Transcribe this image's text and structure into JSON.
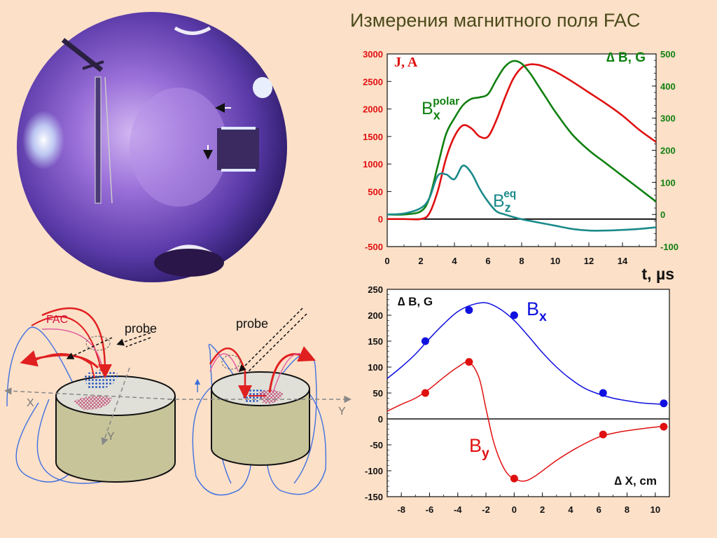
{
  "slide": {
    "title": "Измерения магнитного поля FAC",
    "background": "#fce0c8"
  },
  "diagram": {
    "fac_label": "FAC",
    "probe_label_left": "probe",
    "probe_label_right": "probe",
    "axis_x": "X",
    "axis_y_left": "Y",
    "axis_y_right": "Y"
  },
  "chart_data": [
    {
      "type": "line",
      "x": [
        0,
        1,
        2,
        2.5,
        3,
        3.5,
        4,
        4.5,
        5,
        5.5,
        6,
        6.5,
        7,
        7.5,
        8,
        8.5,
        9,
        9.5,
        10,
        11,
        12,
        13,
        14,
        15,
        16
      ],
      "xlabel": "t, µs",
      "xlim": [
        0,
        16
      ],
      "x_ticks": [
        0,
        2,
        4,
        6,
        8,
        10,
        12,
        14
      ],
      "ylabel_left": "J, A",
      "ylim_left": [
        -500,
        3000
      ],
      "y_ticks_left": [
        -500,
        0,
        500,
        1000,
        1500,
        2000,
        2500,
        3000
      ],
      "ylabel_right": "∆ B, G",
      "ylim_right": [
        -100,
        500
      ],
      "y_ticks_right": [
        -100,
        0,
        100,
        200,
        300,
        400,
        500
      ],
      "colors": {
        "left_axis": "#e01010",
        "right_axis": "#108010",
        "teal": "#1a8a8a"
      },
      "series": [
        {
          "name": "J",
          "axis": "left",
          "color": "#e01010",
          "values": [
            0,
            0,
            0,
            100,
            500,
            1100,
            1500,
            1700,
            1650,
            1500,
            1500,
            1800,
            2200,
            2550,
            2750,
            2810,
            2800,
            2750,
            2680,
            2500,
            2300,
            2100,
            1880,
            1620,
            1400
          ]
        },
        {
          "name": "B_x^polar",
          "label_main": "B",
          "label_sub": "x",
          "label_sup": "polar",
          "axis": "right",
          "color": "#108010",
          "values": [
            0,
            0,
            10,
            50,
            150,
            250,
            300,
            340,
            360,
            365,
            375,
            420,
            460,
            478,
            470,
            440,
            400,
            360,
            320,
            250,
            200,
            160,
            120,
            80,
            40
          ]
        },
        {
          "name": "B_z^eq",
          "label_main": "B",
          "label_sub": "z",
          "label_sup": "eq",
          "axis": "right",
          "color": "#1a8a8a",
          "values": [
            0,
            3,
            20,
            50,
            120,
            125,
            110,
            152,
            130,
            80,
            40,
            10,
            0,
            -8,
            -15,
            -20,
            -25,
            -30,
            -35,
            -45,
            -50,
            -50,
            -48,
            -45,
            -40
          ]
        }
      ]
    },
    {
      "type": "scatter",
      "xlabel": "∆ X, cm",
      "ylabel": "∆ B, G",
      "xlim": [
        -9,
        11
      ],
      "ylim": [
        -150,
        250
      ],
      "x_ticks": [
        -8,
        -6,
        -4,
        -2,
        0,
        2,
        4,
        6,
        8,
        10
      ],
      "y_ticks": [
        -150,
        -100,
        -50,
        0,
        50,
        100,
        150,
        200,
        250
      ],
      "series": [
        {
          "name": "B_x",
          "label_main": "B",
          "label_sub": "x",
          "color": "#1010e0",
          "points": [
            [
              -6.3,
              150
            ],
            [
              -3.2,
              210
            ],
            [
              0,
              200
            ],
            [
              6.3,
              50
            ],
            [
              10.6,
              30
            ]
          ],
          "fit": [
            [
              -9,
              78
            ],
            [
              -8,
              100
            ],
            [
              -7,
              125
            ],
            [
              -6,
              155
            ],
            [
              -5,
              183
            ],
            [
              -4,
              207
            ],
            [
              -3,
              220
            ],
            [
              -2,
              224
            ],
            [
              -1,
              212
            ],
            [
              0,
              190
            ],
            [
              1,
              160
            ],
            [
              2,
              128
            ],
            [
              3,
              100
            ],
            [
              4,
              77
            ],
            [
              5,
              59
            ],
            [
              6,
              48
            ],
            [
              7,
              40
            ],
            [
              8,
              35
            ],
            [
              9,
              31
            ],
            [
              10,
              29
            ],
            [
              10.6,
              28
            ]
          ]
        },
        {
          "name": "B_y",
          "label_main": "B",
          "label_sub": "y",
          "color": "#e01010",
          "points": [
            [
              -6.3,
              50
            ],
            [
              -3.2,
              110
            ],
            [
              0,
              -115
            ],
            [
              6.3,
              -30
            ],
            [
              10.6,
              -15
            ]
          ],
          "fit": [
            [
              -9,
              15
            ],
            [
              -8,
              28
            ],
            [
              -7,
              40
            ],
            [
              -6,
              58
            ],
            [
              -5,
              80
            ],
            [
              -4,
              100
            ],
            [
              -3.2,
              109
            ],
            [
              -2.5,
              80
            ],
            [
              -2,
              20
            ],
            [
              -1.5,
              -40
            ],
            [
              -1,
              -80
            ],
            [
              -0.5,
              -105
            ],
            [
              0,
              -115
            ],
            [
              0.7,
              -120
            ],
            [
              1.5,
              -110
            ],
            [
              3,
              -80
            ],
            [
              4.5,
              -55
            ],
            [
              6,
              -35
            ],
            [
              7.5,
              -25
            ],
            [
              9,
              -19
            ],
            [
              10.6,
              -14
            ]
          ]
        }
      ]
    }
  ]
}
